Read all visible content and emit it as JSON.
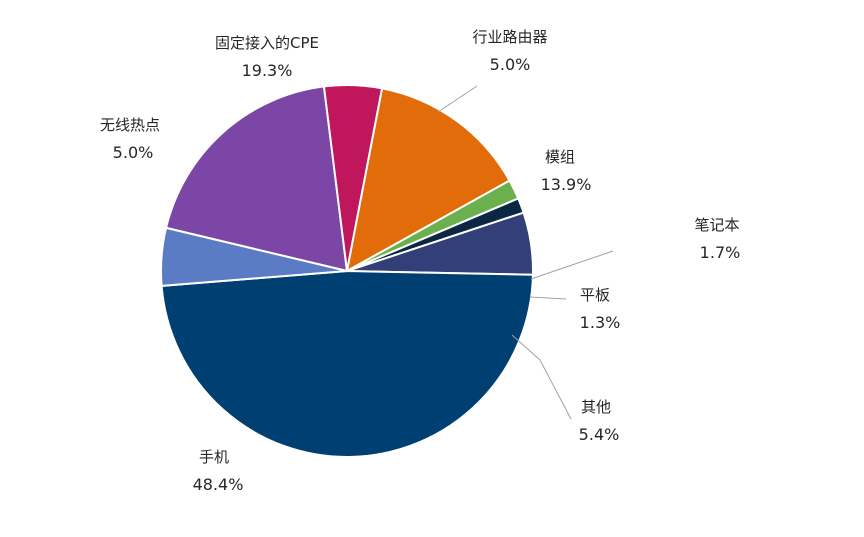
{
  "chart_data": {
    "type": "pie",
    "title": "",
    "slices": [
      {
        "label": "固定接入的CPE",
        "value": 19.3,
        "value_label": "19.3%",
        "color": "#7b46a6"
      },
      {
        "label": "行业路由器",
        "value": 5.0,
        "value_label": "5.0%",
        "color": "#c0175c"
      },
      {
        "label": "模组",
        "value": 13.9,
        "value_label": "13.9%",
        "color": "#e26b0a"
      },
      {
        "label": "笔记本",
        "value": 1.7,
        "value_label": "1.7%",
        "color": "#6ab04c"
      },
      {
        "label": "平板",
        "value": 1.3,
        "value_label": "1.3%",
        "color": "#0b2743"
      },
      {
        "label": "其他",
        "value": 5.4,
        "value_label": "5.4%",
        "color": "#323f78"
      },
      {
        "label": "手机",
        "value": 48.4,
        "value_label": "48.4%",
        "color": "#003f72"
      },
      {
        "label": "无线热点",
        "value": 5.0,
        "value_label": "5.0%",
        "color": "#5b7cc4"
      }
    ]
  }
}
